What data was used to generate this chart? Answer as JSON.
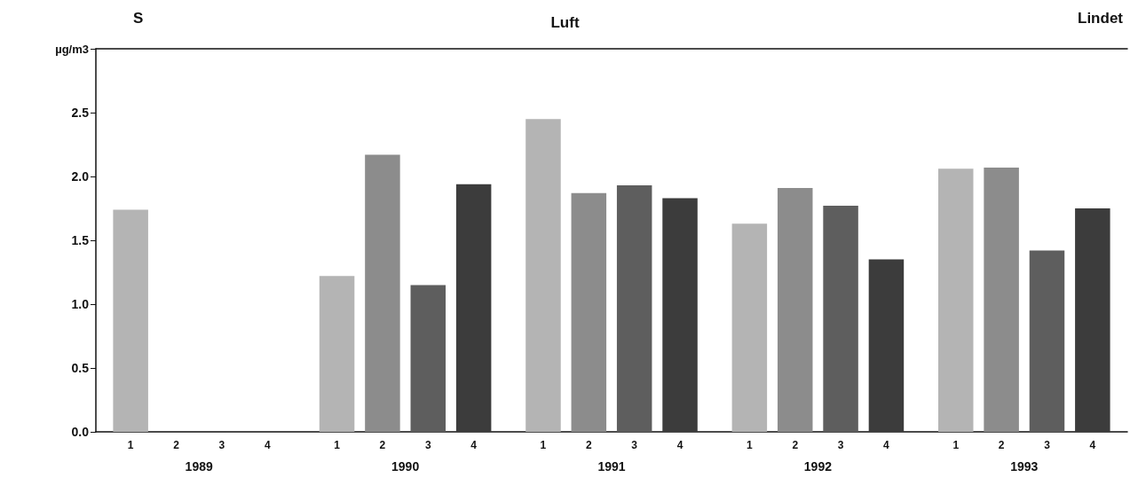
{
  "chart_data": {
    "type": "bar",
    "title": "Luft",
    "annotations": [
      "S",
      "Lindet"
    ],
    "ylabel": "µg/m3",
    "categories": [
      "1989",
      "1990",
      "1991",
      "1992",
      "1993"
    ],
    "series": [
      {
        "name": "1",
        "color": "#b4b4b4",
        "values": [
          1.74,
          1.22,
          2.45,
          1.63,
          2.06
        ]
      },
      {
        "name": "2",
        "color": "#8c8c8c",
        "values": [
          null,
          2.17,
          1.87,
          1.91,
          2.07
        ]
      },
      {
        "name": "3",
        "color": "#5e5e5e",
        "values": [
          null,
          1.15,
          1.93,
          1.77,
          1.42
        ]
      },
      {
        "name": "4",
        "color": "#3c3c3c",
        "values": [
          null,
          1.94,
          1.83,
          1.35,
          1.75
        ]
      }
    ],
    "ylim": [
      0,
      3
    ],
    "yticks": [
      {
        "value": 0,
        "label": "0.0"
      },
      {
        "value": 0.5,
        "label": "0.5"
      },
      {
        "value": 1,
        "label": "1.0"
      },
      {
        "value": 1.5,
        "label": "1.5"
      },
      {
        "value": 2,
        "label": "2.0"
      },
      {
        "value": 2.5,
        "label": "2.5"
      },
      {
        "value": 3,
        "label": null
      }
    ],
    "grid": false
  }
}
